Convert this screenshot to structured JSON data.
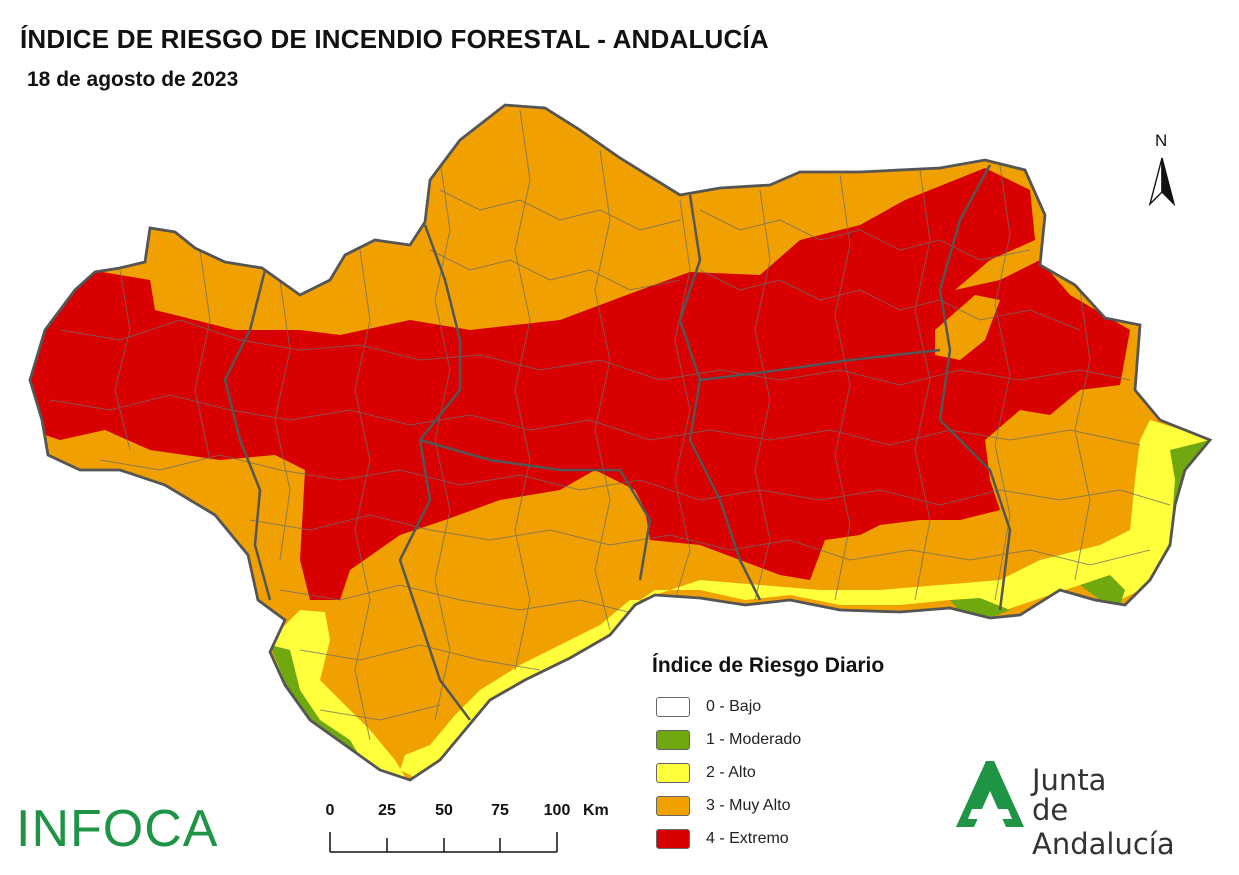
{
  "header": {
    "title": "ÍNDICE DE RIESGO DE INCENDIO FORESTAL - ANDALUCÍA",
    "date": "18 de agosto de 2023"
  },
  "north_arrow": {
    "label": "N"
  },
  "legend": {
    "title": "Índice de Riesgo Diario",
    "items": [
      {
        "label": "0 - Bajo",
        "color": "#ffffff"
      },
      {
        "label": "1 - Moderado",
        "color": "#6fa80f"
      },
      {
        "label": "2 - Alto",
        "color": "#ffff3c"
      },
      {
        "label": "3 - Muy Alto",
        "color": "#f0a000"
      },
      {
        "label": "4 - Extremo",
        "color": "#d80000"
      }
    ]
  },
  "scale_bar": {
    "ticks": [
      "0",
      "25",
      "50",
      "75",
      "100"
    ],
    "unit": "Km"
  },
  "logos": {
    "infoca": "INFOCA",
    "junta_line1": "Junta",
    "junta_line2": "de Andalucía",
    "junta_color": "#1e9444"
  },
  "map_colors": {
    "border": "#555555",
    "extreme": "#d80000",
    "very_high": "#f0a000",
    "high": "#ffff3c",
    "moderate": "#6fa80f"
  }
}
